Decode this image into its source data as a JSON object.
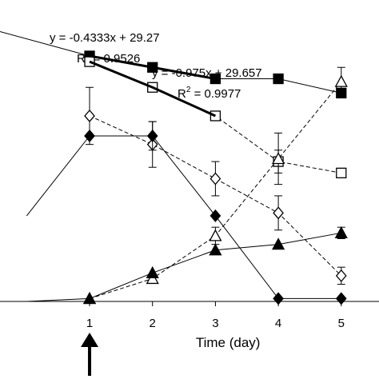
{
  "chart_data": {
    "type": "line",
    "xlabel": "Time (day)",
    "ylabel": "",
    "x_ticks": [
      "1",
      "2",
      "3",
      "4",
      "5"
    ],
    "xlim": [
      -0.5,
      5.6
    ],
    "ylim": [
      0,
      100
    ],
    "grid": false,
    "marker_arrow_at_x": 1,
    "annotations": [
      {
        "line1": "y = -0.4333x + 29.27",
        "line2": "R",
        "sup": "2",
        "line3": " = 0.9526"
      },
      {
        "line1": "y = -0.975x + 29.657",
        "line2": "R",
        "sup": "2",
        "line3": " = 0.9977"
      }
    ],
    "series": [
      {
        "marker": "filled-square",
        "dash": false,
        "stroke_width": 1,
        "x": [
          1,
          2,
          3,
          4,
          5
        ],
        "y": [
          86,
          82,
          78,
          78,
          73
        ],
        "err": [
          0,
          0,
          0,
          0,
          0
        ]
      },
      {
        "marker": "open-square",
        "dash": true,
        "stroke_width": 1,
        "x": [
          1,
          2,
          3,
          4,
          5
        ],
        "y": [
          84,
          75,
          65,
          49,
          45
        ],
        "err": [
          0,
          0,
          0,
          4,
          0
        ]
      },
      {
        "marker": "open-diamond",
        "dash": true,
        "stroke_width": 1,
        "x": [
          1,
          2,
          3,
          4,
          5
        ],
        "y": [
          65,
          55,
          43,
          31,
          9
        ],
        "err": [
          10,
          8,
          6,
          6,
          3
        ]
      },
      {
        "marker": "filled-diamond",
        "dash": false,
        "stroke_width": 1,
        "x": [
          0,
          1,
          2,
          3,
          4,
          5
        ],
        "y": [
          30,
          58,
          58,
          30,
          1,
          1
        ],
        "err": [
          0,
          0,
          5,
          0,
          0,
          0
        ]
      },
      {
        "marker": "open-triangle",
        "dash": true,
        "stroke_width": 1,
        "x": [
          1,
          2,
          3,
          4,
          5
        ],
        "y": [
          1,
          8,
          23,
          50,
          77
        ],
        "err": [
          0,
          0,
          3,
          9,
          5
        ]
      },
      {
        "marker": "filled-triangle",
        "dash": false,
        "stroke_width": 1,
        "x": [
          0,
          1,
          2,
          3,
          4,
          5
        ],
        "y": [
          0,
          1,
          10,
          18,
          20,
          24
        ],
        "err": [
          0,
          0,
          0,
          0,
          0,
          2
        ]
      },
      {
        "marker": "none",
        "dash": false,
        "stroke_width": 1,
        "x": [
          -0.5,
          1,
          2,
          3
        ],
        "y": [
          95,
          86,
          82,
          78
        ],
        "err": [
          0,
          0,
          0,
          0
        ]
      },
      {
        "marker": "none",
        "dash": false,
        "stroke_width": 3,
        "x": [
          1,
          2,
          3
        ],
        "y": [
          86,
          82,
          78
        ],
        "err": [
          0,
          0,
          0
        ]
      },
      {
        "marker": "none",
        "dash": false,
        "stroke_width": 3,
        "x": [
          1,
          2,
          3
        ],
        "y": [
          84,
          75,
          65
        ],
        "err": [
          0,
          0,
          0
        ]
      }
    ]
  }
}
